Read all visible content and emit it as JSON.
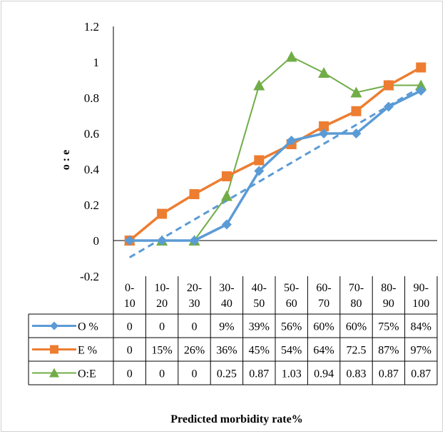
{
  "chart_data": {
    "type": "line",
    "title": "",
    "xlabel": "Predicted morbidity rate%",
    "ylabel": "o : e",
    "ylim": [
      -0.2,
      1.2
    ],
    "y_ticks": [
      "1.2",
      "1",
      "0.8",
      "0.6",
      "0.4",
      "0.2",
      "0",
      "-0.2"
    ],
    "y_tick_values": [
      1.2,
      1.0,
      0.8,
      0.6,
      0.4,
      0.2,
      0.0,
      -0.2
    ],
    "categories": [
      "0-10",
      "10-20",
      "20-30",
      "30-40",
      "40-50",
      "50-60",
      "60-70",
      "70-80",
      "80-90",
      "90-100"
    ],
    "category_lines": [
      [
        "0-",
        "10"
      ],
      [
        "10-",
        "20"
      ],
      [
        "20-",
        "30"
      ],
      [
        "30-",
        "40"
      ],
      [
        "40-",
        "50"
      ],
      [
        "50-",
        "60"
      ],
      [
        "60-",
        "70"
      ],
      [
        "70-",
        "80"
      ],
      [
        "80-",
        "90"
      ],
      [
        "90-",
        "100"
      ]
    ],
    "grid": false,
    "legend": "data-table",
    "series": [
      {
        "name": "O %",
        "marker": "diamond",
        "color": "#5B9BD5",
        "values": [
          0,
          0,
          0,
          0.09,
          0.39,
          0.56,
          0.6,
          0.6,
          0.75,
          0.84
        ],
        "table": [
          "0",
          "0",
          "0",
          "9%",
          "39%",
          "56%",
          "60%",
          "60%",
          "75%",
          "84%"
        ]
      },
      {
        "name": "E %",
        "marker": "square",
        "color": "#ED7D31",
        "values": [
          0,
          0.15,
          0.26,
          0.36,
          0.45,
          0.54,
          0.64,
          0.725,
          0.87,
          0.97
        ],
        "table": [
          "0",
          "15%",
          "26%",
          "36%",
          "45%",
          "54%",
          "64%",
          "72.5",
          "87%",
          "97%"
        ]
      },
      {
        "name": "O:E",
        "marker": "triangle",
        "color": "#70AD47",
        "values": [
          0,
          0,
          0,
          0.25,
          0.87,
          1.03,
          0.94,
          0.83,
          0.87,
          0.87
        ],
        "table": [
          "0",
          "0",
          "0",
          "0.25",
          "0.87",
          "1.03",
          "0.94",
          "0.83",
          "0.87",
          "0.87"
        ]
      }
    ],
    "trendline": {
      "series": "O %",
      "type": "linear",
      "style": "dashed",
      "color": "#5B9BD5"
    }
  }
}
